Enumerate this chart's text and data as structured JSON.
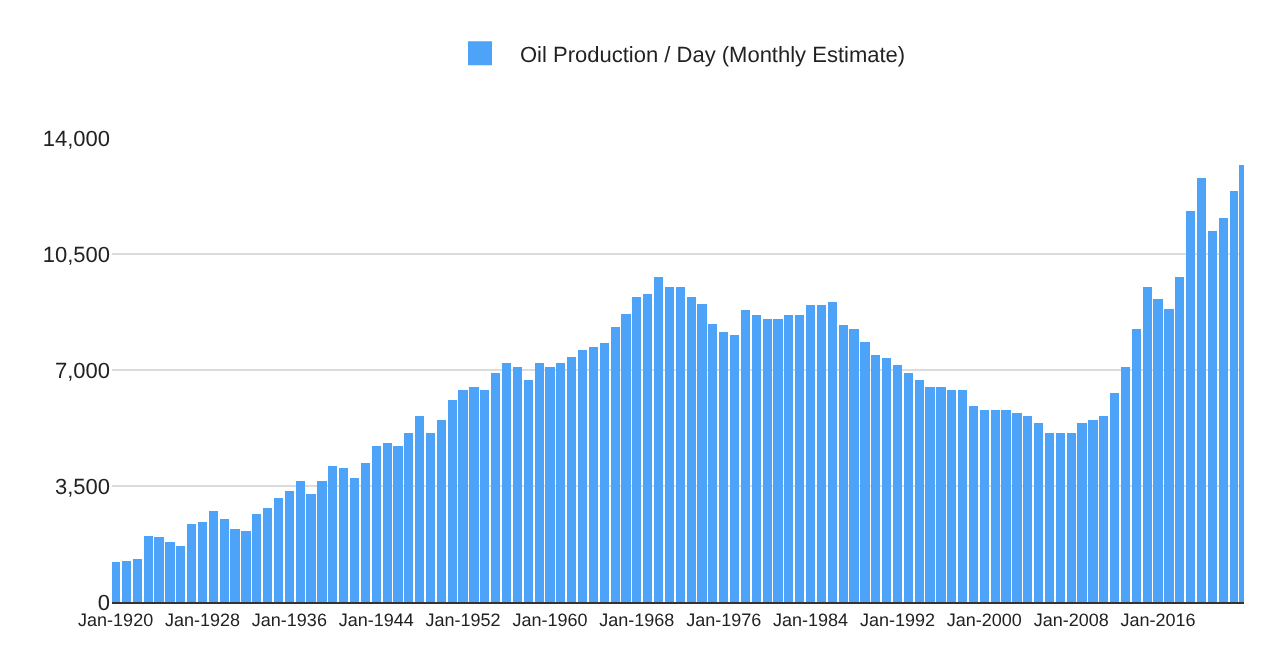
{
  "chart_data": {
    "type": "bar",
    "x": [
      "1920-01",
      "1921-01",
      "1922-01",
      "1923-01",
      "1924-01",
      "1925-01",
      "1926-01",
      "1927-01",
      "1928-01",
      "1929-01",
      "1930-01",
      "1931-01",
      "1932-01",
      "1933-01",
      "1934-01",
      "1935-01",
      "1936-01",
      "1937-01",
      "1938-01",
      "1939-01",
      "1940-01",
      "1941-01",
      "1942-01",
      "1943-01",
      "1944-01",
      "1945-01",
      "1946-01",
      "1947-01",
      "1948-01",
      "1949-01",
      "1950-01",
      "1951-01",
      "1952-01",
      "1953-01",
      "1954-01",
      "1955-01",
      "1956-01",
      "1957-01",
      "1958-01",
      "1959-01",
      "1960-01",
      "1961-01",
      "1962-01",
      "1963-01",
      "1964-01",
      "1965-01",
      "1966-01",
      "1967-01",
      "1968-01",
      "1969-01",
      "1970-01",
      "1971-01",
      "1972-01",
      "1973-01",
      "1974-01",
      "1975-01",
      "1976-01",
      "1977-01",
      "1978-01",
      "1979-01",
      "1980-01",
      "1981-01",
      "1982-01",
      "1983-01",
      "1984-01",
      "1985-01",
      "1986-01",
      "1987-01",
      "1988-01",
      "1989-01",
      "1990-01",
      "1991-01",
      "1992-01",
      "1993-01",
      "1994-01",
      "1995-01",
      "1996-01",
      "1997-01",
      "1998-01",
      "1999-01",
      "2000-01",
      "2001-01",
      "2002-01",
      "2003-01",
      "2004-01",
      "2005-01",
      "2006-01",
      "2007-01",
      "2008-01",
      "2009-01",
      "2010-01",
      "2011-01",
      "2012-01",
      "2013-01",
      "2014-01",
      "2015-01",
      "2016-01",
      "2017-01",
      "2018-01",
      "2019-01",
      "2020-01",
      "2021-01",
      "2022-01",
      "2023-01",
      "2023-11"
    ],
    "series": [
      {
        "name": "Oil Production / Day (Monthly Estimate)",
        "color": "#4da3f7",
        "values": [
          1200,
          1250,
          1300,
          2000,
          1950,
          1800,
          1700,
          2350,
          2400,
          2750,
          2500,
          2200,
          2150,
          2650,
          2850,
          3150,
          3350,
          3650,
          3250,
          3650,
          4100,
          4050,
          3750,
          4200,
          4700,
          4800,
          4700,
          5100,
          5600,
          5100,
          5500,
          6100,
          6400,
          6500,
          6400,
          6900,
          7200,
          7100,
          6700,
          7200,
          7100,
          7200,
          7400,
          7600,
          7700,
          7800,
          8300,
          8700,
          9200,
          9300,
          9800,
          9500,
          9500,
          9200,
          9000,
          8400,
          8150,
          8050,
          8800,
          8650,
          8550,
          8550,
          8650,
          8650,
          8950,
          8950,
          9050,
          8350,
          8250,
          7850,
          7450,
          7350,
          7150,
          6900,
          6700,
          6500,
          6500,
          6400,
          6400,
          5900,
          5800,
          5800,
          5800,
          5700,
          5600,
          5400,
          5100,
          5100,
          5100,
          5400,
          5500,
          5600,
          6300,
          7100,
          8250,
          9500,
          9150,
          8850,
          9800,
          11800,
          12800,
          11200,
          11600,
          12400,
          13200
        ]
      }
    ],
    "xlim": [
      "1919-09",
      "2023-12"
    ],
    "xticks": [
      {
        "value": "1920-01",
        "label": "Jan-1920"
      },
      {
        "value": "1928-01",
        "label": "Jan-1928"
      },
      {
        "value": "1936-01",
        "label": "Jan-1936"
      },
      {
        "value": "1944-01",
        "label": "Jan-1944"
      },
      {
        "value": "1952-01",
        "label": "Jan-1952"
      },
      {
        "value": "1960-01",
        "label": "Jan-1960"
      },
      {
        "value": "1968-01",
        "label": "Jan-1968"
      },
      {
        "value": "1976-01",
        "label": "Jan-1976"
      },
      {
        "value": "1984-01",
        "label": "Jan-1984"
      },
      {
        "value": "1992-01",
        "label": "Jan-1992"
      },
      {
        "value": "2000-01",
        "label": "Jan-2000"
      },
      {
        "value": "2008-01",
        "label": "Jan-2008"
      },
      {
        "value": "2016-01",
        "label": "Jan-2016"
      }
    ],
    "ylim": [
      0,
      14000
    ],
    "yticks": [
      0,
      {
        "value": 3500,
        "label": "3,500"
      },
      {
        "value": 7000,
        "label": "7,000"
      },
      {
        "value": 10500,
        "label": "10,500"
      },
      {
        "value": 14000,
        "label": "14,000"
      }
    ],
    "grid": "y",
    "legend": "top"
  }
}
